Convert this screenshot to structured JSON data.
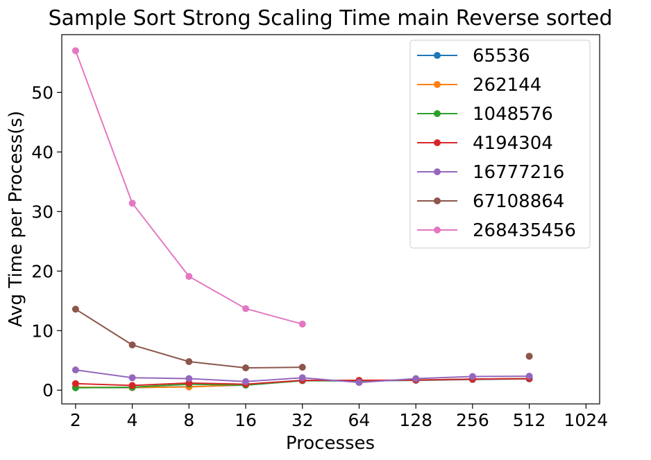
{
  "chart_data": {
    "type": "line",
    "title": "Sample Sort Strong Scaling Time main Reverse sorted",
    "xlabel": "Processes",
    "ylabel": "Avg Time per Process(s)",
    "x_scale": "log2",
    "x_ticks": [
      2,
      4,
      8,
      16,
      32,
      64,
      128,
      256,
      512,
      1024
    ],
    "y_ticks": [
      0,
      10,
      20,
      30,
      40,
      50
    ],
    "xlim": [
      1.69,
      1210
    ],
    "ylim": [
      -2.3,
      59.7
    ],
    "grid": false,
    "legend_position": "top-right",
    "series": [
      {
        "name": "65536",
        "color": "#1f77b4",
        "x": [
          2,
          4,
          8,
          16,
          32,
          64,
          128,
          256,
          512
        ],
        "y": [
          0.45,
          0.42,
          0.58,
          0.85,
          1.6,
          1.55,
          1.65,
          1.8,
          1.9
        ]
      },
      {
        "name": "262144",
        "color": "#ff7f0e",
        "x": [
          2,
          4,
          8,
          16,
          32,
          64,
          128,
          256,
          512
        ],
        "y": [
          0.5,
          0.45,
          0.55,
          0.9,
          1.65,
          1.6,
          1.7,
          1.85,
          1.95
        ]
      },
      {
        "name": "1048576",
        "color": "#2ca02c",
        "x": [
          2,
          4,
          8,
          16,
          32,
          64,
          128,
          256,
          512
        ],
        "y": [
          0.4,
          0.5,
          1.0,
          0.85,
          1.6,
          1.6,
          1.7,
          1.85,
          1.95
        ]
      },
      {
        "name": "4194304",
        "color": "#d62728",
        "x": [
          2,
          4,
          8,
          16,
          32,
          64,
          128,
          256,
          512
        ],
        "y": [
          1.1,
          0.8,
          1.2,
          1.0,
          1.65,
          1.65,
          1.7,
          1.85,
          1.95
        ]
      },
      {
        "name": "16777216",
        "color": "#9467bd",
        "x": [
          2,
          4,
          8,
          16,
          32,
          64,
          128,
          256,
          512
        ],
        "y": [
          3.4,
          2.1,
          1.95,
          1.45,
          2.1,
          1.3,
          1.95,
          2.3,
          2.35
        ]
      },
      {
        "name": "67108864",
        "color": "#8c564b",
        "x": [
          2,
          4,
          8,
          16,
          32,
          512
        ],
        "y": [
          13.6,
          7.6,
          4.8,
          3.75,
          3.85,
          5.7
        ],
        "breaks_after_index": 4
      },
      {
        "name": "268435456",
        "color": "#e377c2",
        "x": [
          2,
          4,
          8,
          16,
          32
        ],
        "y": [
          57.0,
          31.4,
          19.1,
          13.7,
          11.1
        ]
      }
    ]
  }
}
